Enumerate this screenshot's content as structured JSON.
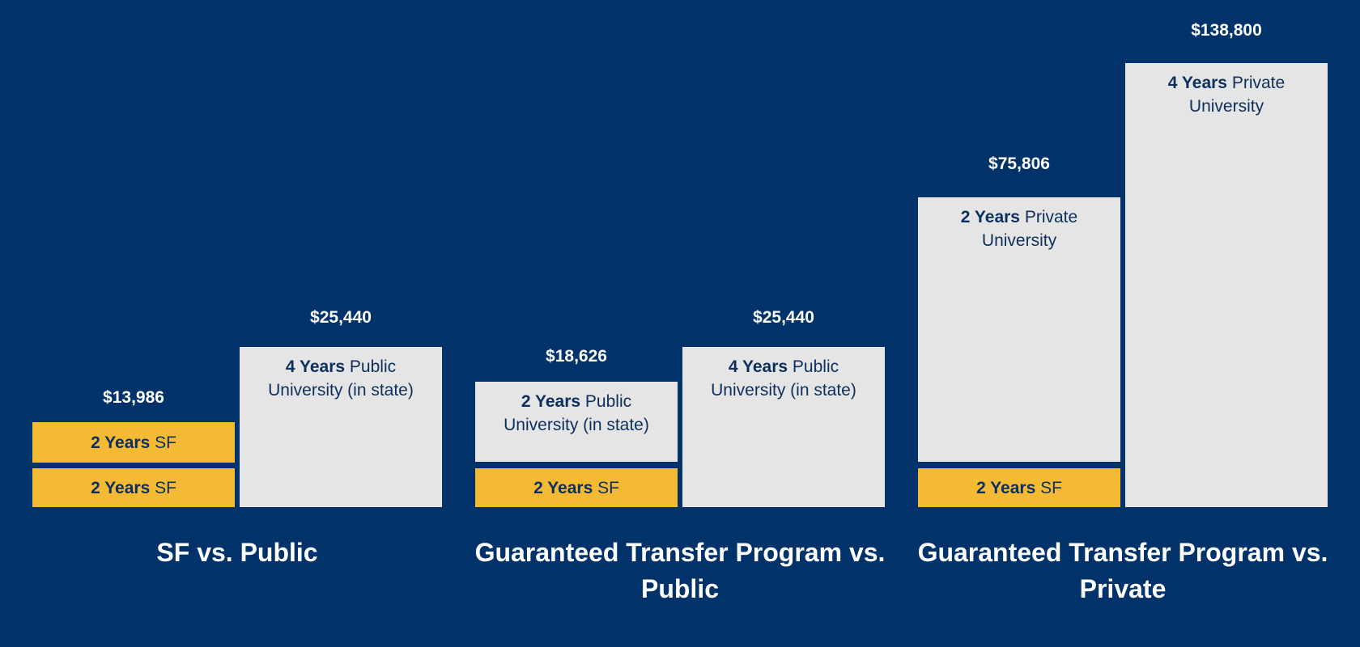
{
  "colors": {
    "background": "#01336A",
    "sf": "#F5BA33",
    "university": "#E5E5E5",
    "text": "#0D2F5E"
  },
  "chart_data": {
    "type": "bar",
    "stacked": true,
    "groups": [
      {
        "title": "SF vs. Public",
        "bars": [
          {
            "total_label": "$13,986",
            "total": 13986,
            "segments": [
              {
                "bold": "2 Years",
                "text": "SF",
                "kind": "sf"
              },
              {
                "bold": "2 Years",
                "text": "SF",
                "kind": "sf"
              }
            ]
          },
          {
            "total_label": "$25,440",
            "total": 25440,
            "segments": [
              {
                "bold": "4 Years",
                "text": "Public University (in state)",
                "kind": "university"
              }
            ]
          }
        ]
      },
      {
        "title": "Guaranteed Transfer Program vs. Public",
        "bars": [
          {
            "total_label": "$18,626",
            "total": 18626,
            "segments": [
              {
                "bold": "2 Years",
                "text": "SF",
                "kind": "sf"
              },
              {
                "bold": "2 Years",
                "text": "Public University (in state)",
                "kind": "university"
              }
            ]
          },
          {
            "total_label": "$25,440",
            "total": 25440,
            "segments": [
              {
                "bold": "4 Years",
                "text": "Public University (in state)",
                "kind": "university"
              }
            ]
          }
        ]
      },
      {
        "title": "Guaranteed Transfer Program vs. Private",
        "bars": [
          {
            "total_label": "$75,806",
            "total": 75806,
            "segments": [
              {
                "bold": "2 Years",
                "text": "SF",
                "kind": "sf"
              },
              {
                "bold": "2 Years",
                "text": "Private University",
                "kind": "university"
              }
            ]
          },
          {
            "total_label": "$138,800",
            "total": 138800,
            "segments": [
              {
                "bold": "4 Years",
                "text": "Private University",
                "kind": "university"
              }
            ]
          }
        ]
      }
    ]
  }
}
